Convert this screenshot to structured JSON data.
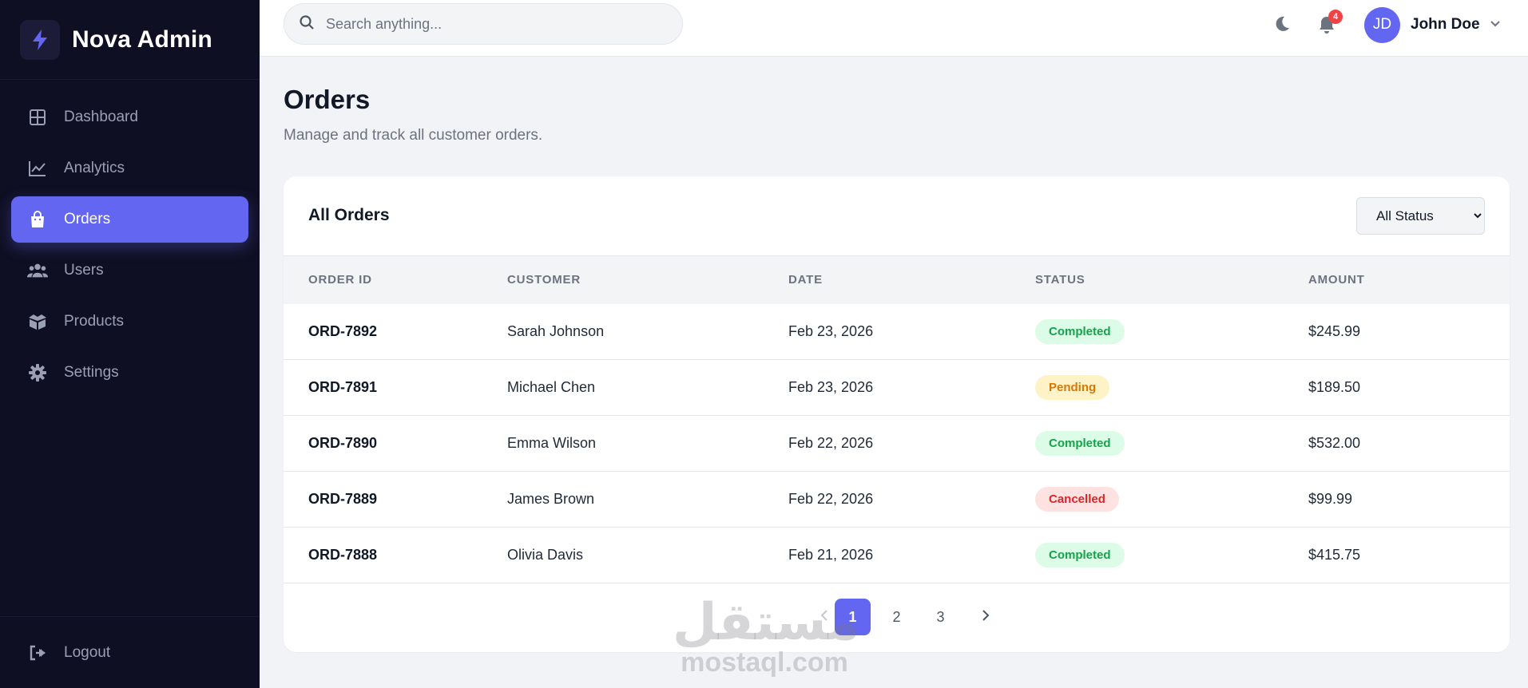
{
  "brand": {
    "name": "Nova Admin",
    "icon": "lightning-icon"
  },
  "sidebar": {
    "items": [
      {
        "label": "Dashboard",
        "icon": "grid-icon",
        "active": false
      },
      {
        "label": "Analytics",
        "icon": "chart-line-icon",
        "active": false
      },
      {
        "label": "Orders",
        "icon": "shopping-bag-icon",
        "active": true
      },
      {
        "label": "Users",
        "icon": "users-icon",
        "active": false
      },
      {
        "label": "Products",
        "icon": "box-icon",
        "active": false
      },
      {
        "label": "Settings",
        "icon": "gear-icon",
        "active": false
      }
    ],
    "logout_label": "Logout"
  },
  "header": {
    "search_placeholder": "Search anything...",
    "notification_count": "4",
    "user_initials": "JD",
    "user_name": "John Doe"
  },
  "page": {
    "title": "Orders",
    "subtitle": "Manage and track all customer orders."
  },
  "orders": {
    "card_title": "All Orders",
    "filter_value": "All Status",
    "columns": [
      "ORDER ID",
      "CUSTOMER",
      "DATE",
      "STATUS",
      "AMOUNT"
    ],
    "rows": [
      {
        "id": "ORD-7892",
        "customer": "Sarah Johnson",
        "date": "Feb 23, 2026",
        "status": "Completed",
        "amount": "$245.99"
      },
      {
        "id": "ORD-7891",
        "customer": "Michael Chen",
        "date": "Feb 23, 2026",
        "status": "Pending",
        "amount": "$189.50"
      },
      {
        "id": "ORD-7890",
        "customer": "Emma Wilson",
        "date": "Feb 22, 2026",
        "status": "Completed",
        "amount": "$532.00"
      },
      {
        "id": "ORD-7889",
        "customer": "James Brown",
        "date": "Feb 22, 2026",
        "status": "Cancelled",
        "amount": "$99.99"
      },
      {
        "id": "ORD-7888",
        "customer": "Olivia Davis",
        "date": "Feb 21, 2026",
        "status": "Completed",
        "amount": "$415.75"
      }
    ],
    "status_colors": {
      "Completed": {
        "bg": "#dcfce7",
        "fg": "#16a34a"
      },
      "Pending": {
        "bg": "#fef3c7",
        "fg": "#d97706"
      },
      "Cancelled": {
        "bg": "#fee2e2",
        "fg": "#dc2626"
      }
    }
  },
  "pagination": {
    "pages": [
      "1",
      "2",
      "3"
    ],
    "current": "1"
  },
  "watermark": {
    "arabic": "مستقل",
    "latin": "mostaql.com"
  },
  "colors": {
    "accent": "#6366f1",
    "sidebar_bg": "#0f0f23",
    "page_bg": "#f2f3f7"
  }
}
